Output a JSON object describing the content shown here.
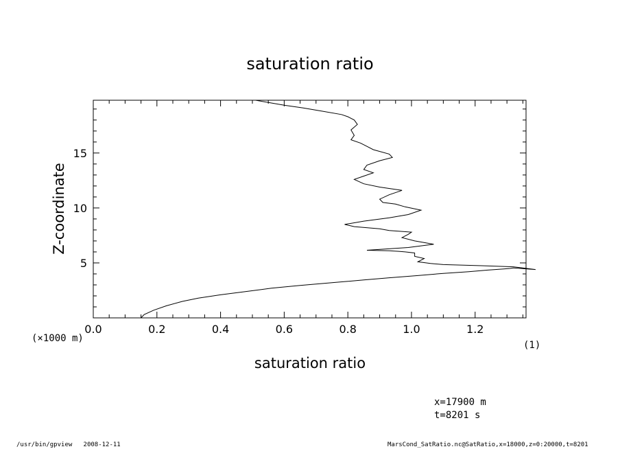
{
  "chart_data": {
    "type": "line",
    "title": "saturation ratio",
    "xlabel": "saturation ratio",
    "ylabel": "Z-coordinate",
    "x_unit": "(1)",
    "y_unit": "(×1000 m)",
    "xlim": [
      0.0,
      1.36
    ],
    "ylim": [
      0.0,
      19.8
    ],
    "x_ticks": [
      0.0,
      0.2,
      0.4,
      0.6,
      0.8,
      1.0,
      1.2
    ],
    "x_tick_labels": [
      "0.0",
      "0.2",
      "0.4",
      "0.6",
      "0.8",
      "1.0",
      "1.2"
    ],
    "y_ticks": [
      5,
      10,
      15
    ],
    "y_tick_labels": [
      "5",
      "10",
      "15"
    ],
    "grid": false,
    "series": [
      {
        "x": [
          0.15,
          0.16,
          0.19,
          0.23,
          0.28,
          0.33,
          0.4,
          0.48,
          0.56,
          0.65,
          0.75,
          0.85,
          0.93,
          1.02,
          1.1,
          1.18,
          1.24,
          1.29,
          1.31,
          1.32,
          1.39,
          1.32,
          1.22,
          1.1,
          1.06,
          1.02,
          1.04,
          1.01,
          1.01,
          0.98,
          0.96,
          0.93,
          0.86,
          0.99,
          1.07,
          1.01,
          0.97,
          0.99,
          1.0,
          0.93,
          0.9,
          0.82,
          0.79,
          0.85,
          0.93,
          0.99,
          1.03,
          0.98,
          0.95,
          0.91,
          0.9,
          0.93,
          0.97,
          0.9,
          0.85,
          0.82,
          0.85,
          0.88,
          0.85,
          0.86,
          0.9,
          0.94,
          0.93,
          0.88,
          0.86,
          0.84,
          0.81,
          0.82,
          0.81,
          0.83,
          0.82,
          0.8,
          0.78,
          0.72,
          0.66,
          0.6,
          0.55,
          0.51
        ],
        "y": [
          0.0,
          0.3,
          0.7,
          1.1,
          1.5,
          1.8,
          2.1,
          2.4,
          2.7,
          2.95,
          3.2,
          3.45,
          3.65,
          3.85,
          4.05,
          4.2,
          4.35,
          4.45,
          4.5,
          4.55,
          4.4,
          4.65,
          4.75,
          4.85,
          4.95,
          5.1,
          5.4,
          5.6,
          5.9,
          6.0,
          6.05,
          6.1,
          6.15,
          6.4,
          6.7,
          7.0,
          7.3,
          7.6,
          7.8,
          7.95,
          8.1,
          8.3,
          8.5,
          8.8,
          9.1,
          9.4,
          9.8,
          10.1,
          10.35,
          10.5,
          10.8,
          11.2,
          11.6,
          11.9,
          12.2,
          12.6,
          12.9,
          13.2,
          13.5,
          13.9,
          14.3,
          14.6,
          14.9,
          15.3,
          15.6,
          15.9,
          16.2,
          16.6,
          17.1,
          17.6,
          18.0,
          18.3,
          18.5,
          18.8,
          19.1,
          19.35,
          19.6,
          19.8
        ]
      }
    ]
  },
  "annotations": {
    "x_position": "x=17900 m",
    "time": "t=8201 s"
  },
  "footer": {
    "left": "/usr/bin/gpview   2008-12-11",
    "right": "MarsCond_SatRatio.nc@SatRatio,x=18000,z=0:20000,t=8201"
  }
}
